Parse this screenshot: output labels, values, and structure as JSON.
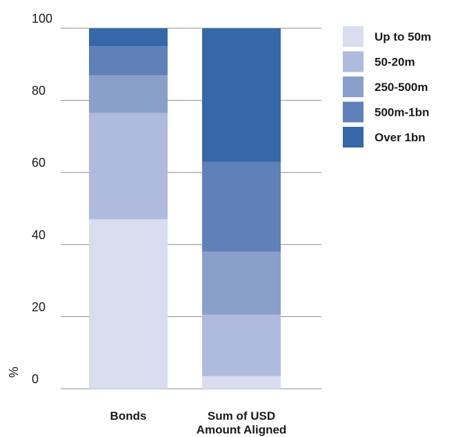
{
  "chart_data": {
    "type": "bar",
    "stacked": true,
    "ylabel": "%",
    "ylim": [
      0,
      100
    ],
    "yticks": [
      0,
      20,
      40,
      60,
      80,
      100
    ],
    "grid": true,
    "legend_position": "right",
    "categories": [
      [
        "Bonds"
      ],
      [
        "Sum of USD",
        "Amount Aligned"
      ]
    ],
    "series": [
      {
        "name": "Up to 50m",
        "color": "#d8ddef",
        "values": [
          47,
          3.5
        ]
      },
      {
        "name": "50-20m",
        "color": "#afbbdc",
        "values": [
          29.5,
          17
        ]
      },
      {
        "name": "250-500m",
        "color": "#8aa0ca",
        "values": [
          10.5,
          17.5
        ]
      },
      {
        "name": "500m-1bn",
        "color": "#5f80b9",
        "values": [
          8,
          25
        ]
      },
      {
        "name": "Over 1bn",
        "color": "#3567a9",
        "values": [
          5,
          37
        ]
      }
    ]
  }
}
